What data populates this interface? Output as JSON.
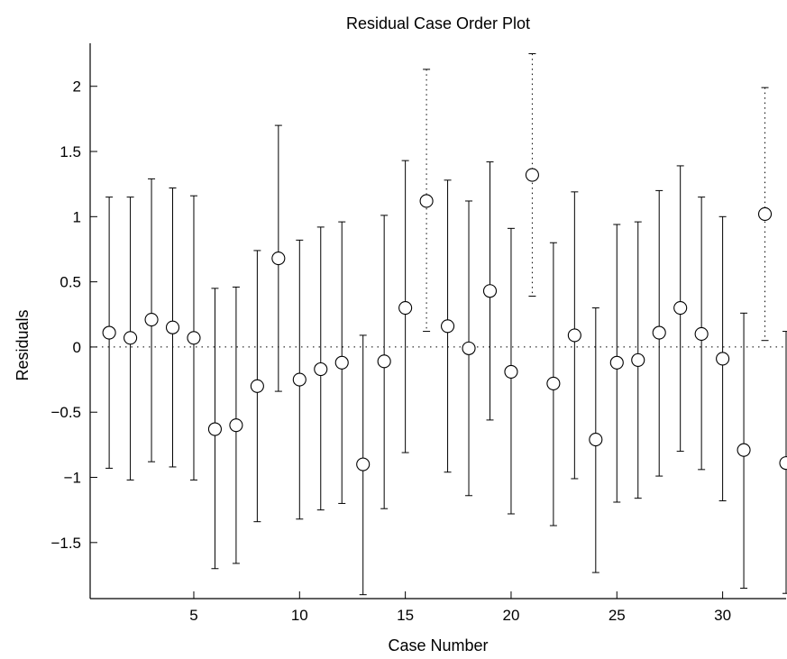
{
  "chart_data": {
    "type": "scatter",
    "title": "Residual Case Order Plot",
    "xlabel": "Case Number",
    "ylabel": "Residuals",
    "xlim": [
      0.1,
      33
    ],
    "ylim": [
      -1.93,
      2.33
    ],
    "xticks": [
      5,
      10,
      15,
      20,
      25,
      30
    ],
    "yticks": [
      -1.5,
      -1,
      -0.5,
      0,
      0.5,
      1,
      1.5,
      2
    ],
    "ytick_labels": [
      "−1.5",
      "−1",
      "−0.5",
      "0",
      "0.5",
      "1",
      "1.5",
      "2"
    ],
    "grid": false,
    "zero_line": true,
    "series": [
      {
        "points": [
          {
            "case": 1,
            "residual": 0.11,
            "lower": -0.93,
            "upper": 1.15,
            "outlier": false
          },
          {
            "case": 2,
            "residual": 0.07,
            "lower": -1.02,
            "upper": 1.15,
            "outlier": false
          },
          {
            "case": 3,
            "residual": 0.21,
            "lower": -0.88,
            "upper": 1.29,
            "outlier": false
          },
          {
            "case": 4,
            "residual": 0.15,
            "lower": -0.92,
            "upper": 1.22,
            "outlier": false
          },
          {
            "case": 5,
            "residual": 0.07,
            "lower": -1.02,
            "upper": 1.16,
            "outlier": false
          },
          {
            "case": 6,
            "residual": -0.63,
            "lower": -1.7,
            "upper": 0.45,
            "outlier": false
          },
          {
            "case": 7,
            "residual": -0.6,
            "lower": -1.66,
            "upper": 0.46,
            "outlier": false
          },
          {
            "case": 8,
            "residual": -0.3,
            "lower": -1.34,
            "upper": 0.74,
            "outlier": false
          },
          {
            "case": 9,
            "residual": 0.68,
            "lower": -0.34,
            "upper": 1.7,
            "outlier": false
          },
          {
            "case": 10,
            "residual": -0.25,
            "lower": -1.32,
            "upper": 0.82,
            "outlier": false
          },
          {
            "case": 11,
            "residual": -0.17,
            "lower": -1.25,
            "upper": 0.92,
            "outlier": false
          },
          {
            "case": 12,
            "residual": -0.12,
            "lower": -1.2,
            "upper": 0.96,
            "outlier": false
          },
          {
            "case": 13,
            "residual": -0.9,
            "lower": -1.9,
            "upper": 0.09,
            "outlier": false
          },
          {
            "case": 14,
            "residual": -0.11,
            "lower": -1.24,
            "upper": 1.01,
            "outlier": false
          },
          {
            "case": 15,
            "residual": 0.3,
            "lower": -0.81,
            "upper": 1.43,
            "outlier": false
          },
          {
            "case": 16,
            "residual": 1.12,
            "lower": 0.12,
            "upper": 2.13,
            "outlier": true
          },
          {
            "case": 17,
            "residual": 0.16,
            "lower": -0.96,
            "upper": 1.28,
            "outlier": false
          },
          {
            "case": 18,
            "residual": -0.01,
            "lower": -1.14,
            "upper": 1.12,
            "outlier": false
          },
          {
            "case": 19,
            "residual": 0.43,
            "lower": -0.56,
            "upper": 1.42,
            "outlier": false
          },
          {
            "case": 20,
            "residual": -0.19,
            "lower": -1.28,
            "upper": 0.91,
            "outlier": false
          },
          {
            "case": 21,
            "residual": 1.32,
            "lower": 0.39,
            "upper": 2.25,
            "outlier": true
          },
          {
            "case": 22,
            "residual": -0.28,
            "lower": -1.37,
            "upper": 0.8,
            "outlier": false
          },
          {
            "case": 23,
            "residual": 0.09,
            "lower": -1.01,
            "upper": 1.19,
            "outlier": false
          },
          {
            "case": 24,
            "residual": -0.71,
            "lower": -1.73,
            "upper": 0.3,
            "outlier": false
          },
          {
            "case": 25,
            "residual": -0.12,
            "lower": -1.19,
            "upper": 0.94,
            "outlier": false
          },
          {
            "case": 26,
            "residual": -0.1,
            "lower": -1.16,
            "upper": 0.96,
            "outlier": false
          },
          {
            "case": 27,
            "residual": 0.11,
            "lower": -0.99,
            "upper": 1.2,
            "outlier": false
          },
          {
            "case": 28,
            "residual": 0.3,
            "lower": -0.8,
            "upper": 1.39,
            "outlier": false
          },
          {
            "case": 29,
            "residual": 0.1,
            "lower": -0.94,
            "upper": 1.15,
            "outlier": false
          },
          {
            "case": 30,
            "residual": -0.09,
            "lower": -1.18,
            "upper": 1.0,
            "outlier": false
          },
          {
            "case": 31,
            "residual": -0.79,
            "lower": -1.85,
            "upper": 0.26,
            "outlier": false
          },
          {
            "case": 32,
            "residual": 1.02,
            "lower": 0.05,
            "upper": 1.99,
            "outlier": true
          },
          {
            "case": 33,
            "residual": -0.89,
            "lower": -1.89,
            "upper": 0.12,
            "outlier": false
          }
        ]
      }
    ],
    "colors": {
      "marker": "#000000",
      "axis": "#000000",
      "background": "#ffffff"
    }
  }
}
